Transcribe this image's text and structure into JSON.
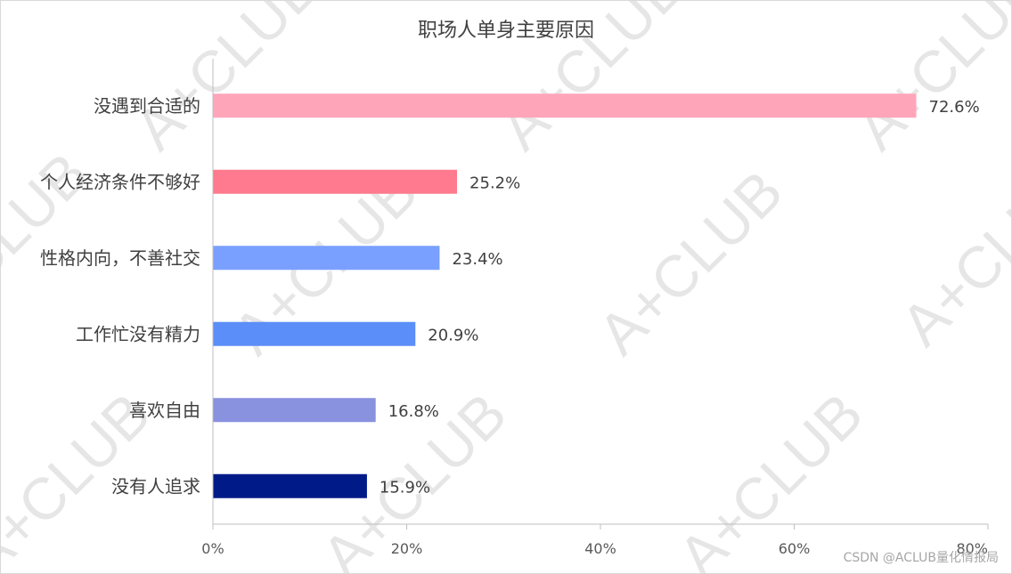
{
  "chart_data": {
    "type": "bar",
    "orientation": "horizontal",
    "title": "职场人单身主要原因",
    "categories": [
      "没遇到合适的",
      "个人经济条件不够好",
      "性格内向，不善社交",
      "工作忙没有精力",
      "喜欢自由",
      "没有人追求"
    ],
    "values": [
      72.6,
      25.2,
      23.4,
      20.9,
      16.8,
      15.9
    ],
    "value_labels": [
      "72.6%",
      "25.2%",
      "23.4%",
      "20.9%",
      "16.8%",
      "15.9%"
    ],
    "bar_colors": [
      "#FFA5BA",
      "#FF7A8E",
      "#7AA0FF",
      "#5B8EF8",
      "#8892DE",
      "#001B87"
    ],
    "xlim": [
      0,
      80
    ],
    "xticks": [
      0,
      20,
      40,
      60,
      80
    ],
    "xtick_labels": [
      "0%",
      "20%",
      "40%",
      "60%",
      "80%"
    ],
    "xlabel": "",
    "ylabel": "",
    "grid": false,
    "legend": "none"
  },
  "watermark": {
    "text": "A+CLUB",
    "color": "#bfbfbf"
  },
  "footer": {
    "credit": "CSDN @ACLUB量化情报局"
  }
}
